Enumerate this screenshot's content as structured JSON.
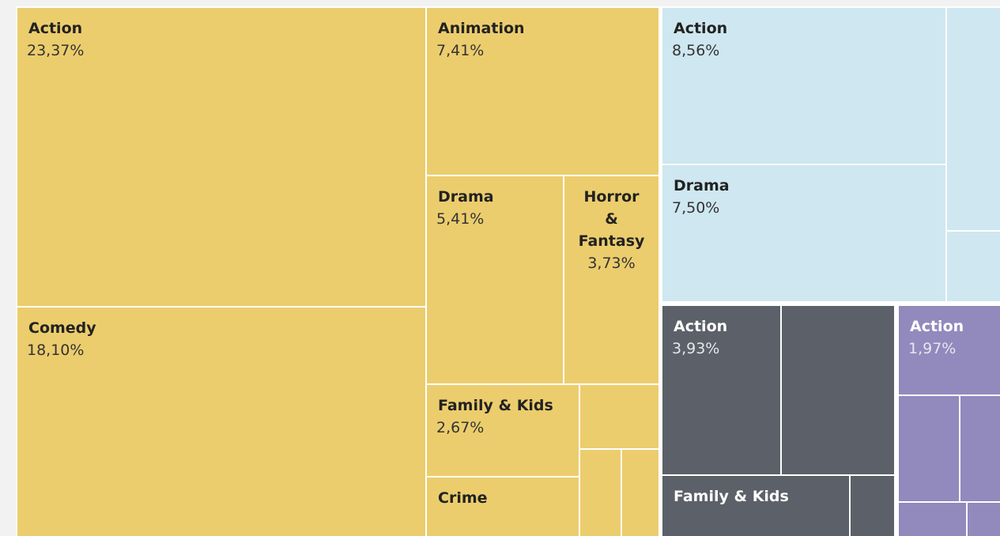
{
  "chart_data": {
    "type": "treemap",
    "series": [
      {
        "color": "#eccd6d",
        "categories": [
          "Action",
          "Comedy",
          "Animation",
          "Drama",
          "Horror & Fantasy",
          "Family & Kids",
          "Crime",
          null,
          null,
          null
        ],
        "values": [
          23.37,
          18.1,
          7.41,
          5.41,
          3.73,
          2.67,
          1.71,
          0.96,
          0.67,
          0.6
        ],
        "value_labels": [
          "23,37%",
          "18,10%",
          "7,41%",
          "5,41%",
          "3,73%",
          "2,67%",
          null,
          null,
          null,
          null
        ]
      },
      {
        "color": "#cfe7f0",
        "categories": [
          "Action",
          "Drama",
          null,
          null
        ],
        "values": [
          8.56,
          7.5,
          2.27,
          0.72
        ],
        "value_labels": [
          "8,56%",
          "7,50%",
          null,
          null
        ]
      },
      {
        "color": "#5c6068",
        "categories": [
          "Action",
          null,
          "Family & Kids",
          null
        ],
        "values": [
          3.93,
          3.65,
          2.16,
          0.5
        ],
        "value_labels": [
          "3,93%",
          null,
          null,
          null
        ]
      },
      {
        "color": "#9289bd",
        "categories": [
          "Action",
          null,
          null,
          null,
          null
        ],
        "values": [
          1.97,
          1.21,
          0.8,
          0.43,
          0.21
        ],
        "value_labels": [
          "1,97%",
          null,
          null,
          null,
          null
        ]
      }
    ]
  }
}
